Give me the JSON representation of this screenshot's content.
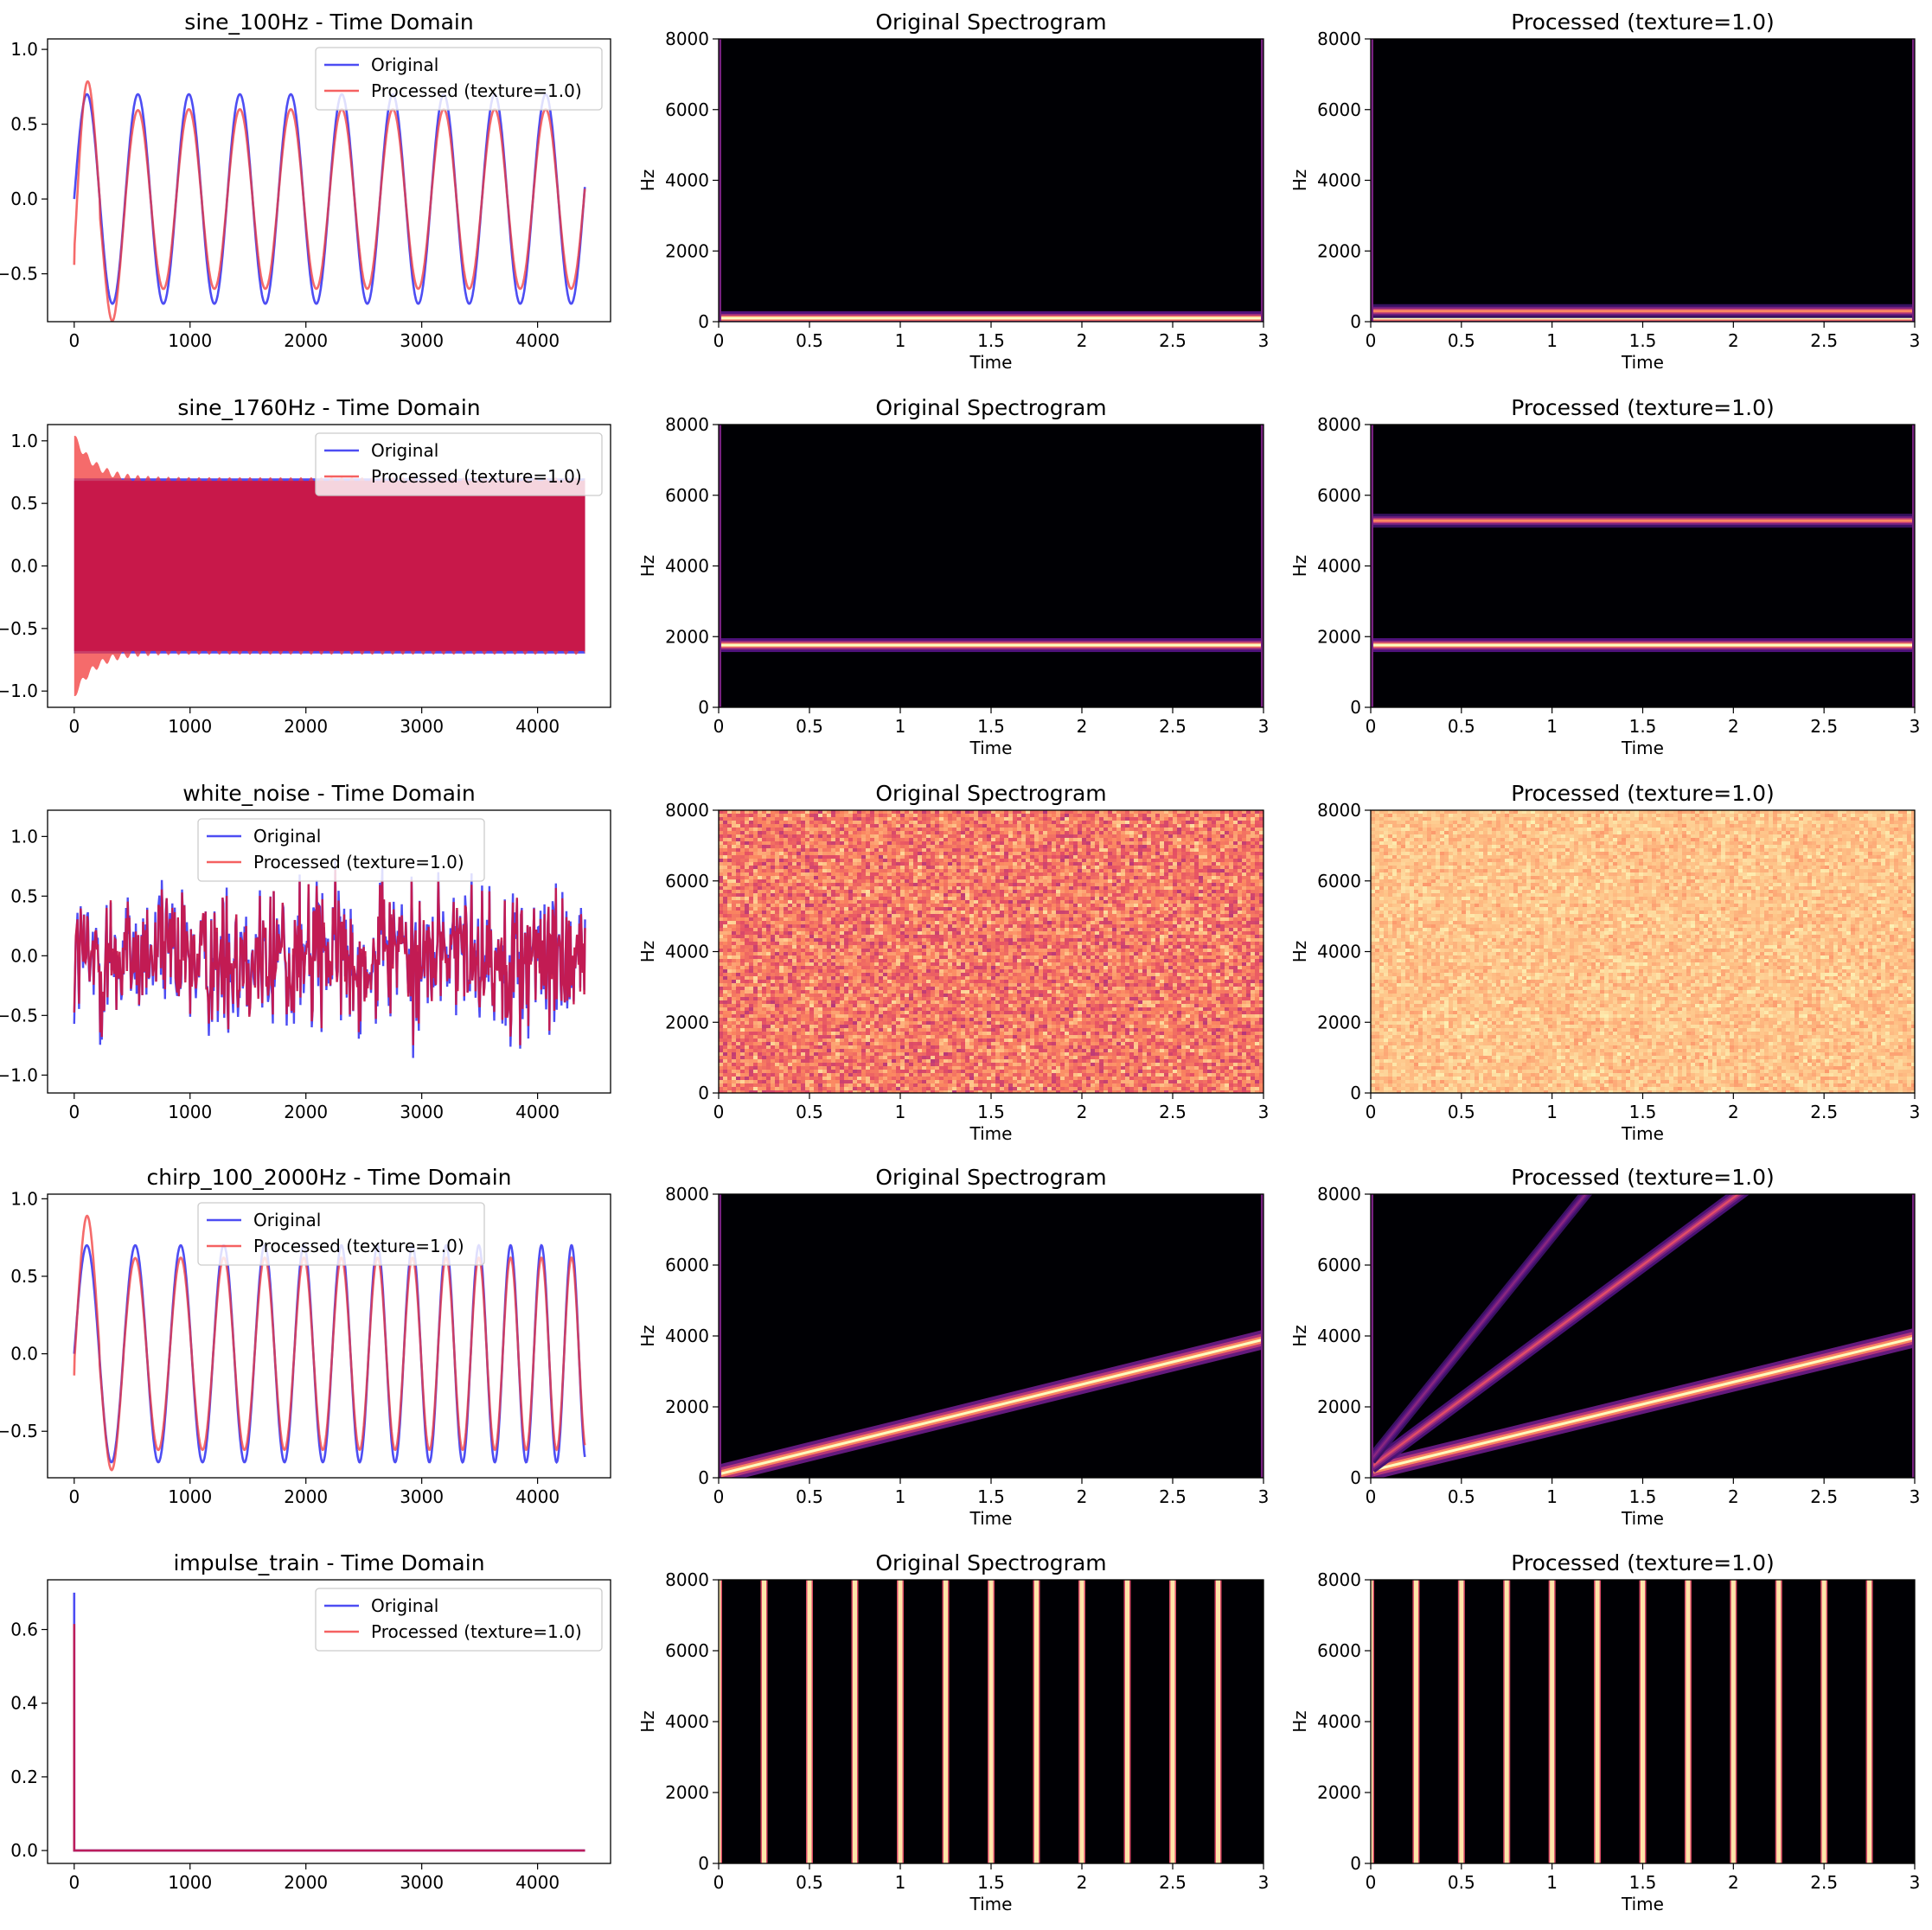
{
  "figure": {
    "time_col_title_suffix": " - Time Domain",
    "orig_spec_title": "Original Spectrogram",
    "proc_spec_title": "Processed (texture=1.0)",
    "spec_xlabel": "Time",
    "spec_ylabel": "Hz",
    "legend_original": "Original",
    "legend_processed": "Processed (texture=1.0)",
    "colors": {
      "original": "#3a3af2",
      "processed": "#f23a3a",
      "overlap": "#c8184a",
      "spec_background": "#000004"
    },
    "colormap": "magma"
  },
  "chart_data": [
    {
      "row": 0,
      "panel": "time",
      "type": "line",
      "title": "sine_100Hz - Time Domain",
      "signal_kind": "sine",
      "xlim": [
        -230,
        4630
      ],
      "ylim": [
        -0.82,
        1.07
      ],
      "xticks": [
        0,
        1000,
        2000,
        3000,
        4000
      ],
      "yticks": [
        -0.5,
        0.0,
        0.5,
        1.0
      ],
      "ytick_labels": [
        "−0.5",
        "0.0",
        "0.5",
        "1.0"
      ],
      "legend_position": "upper right",
      "series": [
        {
          "name": "Original",
          "amplitude": 0.7,
          "period": 440,
          "x_range": [
            0,
            4410
          ]
        },
        {
          "name": "Processed (texture=1.0)",
          "amplitude": 0.6,
          "start_value": -0.44,
          "first_peak": 0.97,
          "first_trough": -0.78,
          "period": 440,
          "x_range": [
            0,
            4410
          ]
        }
      ]
    },
    {
      "row": 0,
      "panel": "original_spectrogram",
      "type": "heatmap",
      "title": "Original Spectrogram",
      "xlabel": "Time",
      "ylabel": "Hz",
      "xlim": [
        0,
        3
      ],
      "ylim": [
        0,
        8000
      ],
      "xticks": [
        0,
        0.5,
        1,
        1.5,
        2,
        2.5,
        3
      ],
      "xtick_labels": [
        "0",
        "0.5",
        "1",
        "1.5",
        "2",
        "2.5",
        "3"
      ],
      "yticks": [
        0,
        2000,
        4000,
        6000,
        8000
      ],
      "tones_hz": [
        100
      ]
    },
    {
      "row": 0,
      "panel": "processed_spectrogram",
      "type": "heatmap",
      "title": "Processed (texture=1.0)",
      "xlabel": "Time",
      "ylabel": "Hz",
      "xlim": [
        0,
        3
      ],
      "ylim": [
        0,
        8000
      ],
      "xticks": [
        0,
        0.5,
        1,
        1.5,
        2,
        2.5,
        3
      ],
      "xtick_labels": [
        "0",
        "0.5",
        "1",
        "1.5",
        "2",
        "2.5",
        "3"
      ],
      "yticks": [
        0,
        2000,
        4000,
        6000,
        8000
      ],
      "tones_hz": [
        100,
        300
      ]
    },
    {
      "row": 1,
      "panel": "time",
      "type": "area",
      "title": "sine_1760Hz - Time Domain",
      "signal_kind": "dense_sine",
      "xlim": [
        -230,
        4630
      ],
      "ylim": [
        -1.13,
        1.13
      ],
      "xticks": [
        0,
        1000,
        2000,
        3000,
        4000
      ],
      "yticks": [
        -1.0,
        -0.5,
        0.0,
        0.5,
        1.0
      ],
      "ytick_labels": [
        "−1.0",
        "−0.5",
        "0.0",
        "0.5",
        "1.0"
      ],
      "legend_position": "upper right",
      "series": [
        {
          "name": "Original",
          "amplitude": 0.7,
          "x_range": [
            0,
            4410
          ]
        },
        {
          "name": "Processed (texture=1.0)",
          "amplitude_start": 1.04,
          "amplitude_end": 0.68,
          "x_range": [
            0,
            4410
          ]
        }
      ]
    },
    {
      "row": 1,
      "panel": "original_spectrogram",
      "type": "heatmap",
      "title": "Original Spectrogram",
      "xlabel": "Time",
      "ylabel": "Hz",
      "xlim": [
        0,
        3
      ],
      "ylim": [
        0,
        8000
      ],
      "xticks": [
        0,
        0.5,
        1,
        1.5,
        2,
        2.5,
        3
      ],
      "xtick_labels": [
        "0",
        "0.5",
        "1",
        "1.5",
        "2",
        "2.5",
        "3"
      ],
      "yticks": [
        0,
        2000,
        4000,
        6000,
        8000
      ],
      "tones_hz": [
        1760
      ]
    },
    {
      "row": 1,
      "panel": "processed_spectrogram",
      "type": "heatmap",
      "title": "Processed (texture=1.0)",
      "xlabel": "Time",
      "ylabel": "Hz",
      "xlim": [
        0,
        3
      ],
      "ylim": [
        0,
        8000
      ],
      "xticks": [
        0,
        0.5,
        1,
        1.5,
        2,
        2.5,
        3
      ],
      "xtick_labels": [
        "0",
        "0.5",
        "1",
        "1.5",
        "2",
        "2.5",
        "3"
      ],
      "yticks": [
        0,
        2000,
        4000,
        6000,
        8000
      ],
      "tones_hz": [
        1760,
        5280
      ]
    },
    {
      "row": 2,
      "panel": "time",
      "type": "line",
      "title": "white_noise - Time Domain",
      "signal_kind": "noise",
      "xlim": [
        -230,
        4630
      ],
      "ylim": [
        -1.15,
        1.22
      ],
      "xticks": [
        0,
        1000,
        2000,
        3000,
        4000
      ],
      "yticks": [
        -1.0,
        -0.5,
        0.0,
        0.5,
        1.0
      ],
      "ytick_labels": [
        "−1.0",
        "−0.5",
        "0.0",
        "0.5",
        "1.0"
      ],
      "legend_position": "upper center",
      "series": [
        {
          "name": "Original",
          "peak_range": [
            -1.05,
            1.13
          ],
          "x_range": [
            0,
            4410
          ]
        },
        {
          "name": "Processed (texture=1.0)",
          "peak_range": [
            -0.75,
            0.75
          ],
          "x_range": [
            0,
            4410
          ]
        }
      ]
    },
    {
      "row": 2,
      "panel": "original_spectrogram",
      "type": "heatmap",
      "title": "Original Spectrogram",
      "xlabel": "Time",
      "ylabel": "Hz",
      "xlim": [
        0,
        3
      ],
      "ylim": [
        0,
        8000
      ],
      "xticks": [
        0,
        0.5,
        1,
        1.5,
        2,
        2.5,
        3
      ],
      "xtick_labels": [
        "0",
        "0.5",
        "1",
        "1.5",
        "2",
        "2.5",
        "3"
      ],
      "yticks": [
        0,
        2000,
        4000,
        6000,
        8000
      ],
      "noise_level": 0.72
    },
    {
      "row": 2,
      "panel": "processed_spectrogram",
      "type": "heatmap",
      "title": "Processed (texture=1.0)",
      "xlabel": "Time",
      "ylabel": "Hz",
      "xlim": [
        0,
        3
      ],
      "ylim": [
        0,
        8000
      ],
      "xticks": [
        0,
        0.5,
        1,
        1.5,
        2,
        2.5,
        3
      ],
      "xtick_labels": [
        "0",
        "0.5",
        "1",
        "1.5",
        "2",
        "2.5",
        "3"
      ],
      "yticks": [
        0,
        2000,
        4000,
        6000,
        8000
      ],
      "noise_level": 0.88
    },
    {
      "row": 3,
      "panel": "time",
      "type": "line",
      "title": "chirp_100_2000Hz - Time Domain",
      "signal_kind": "chirp",
      "xlim": [
        -230,
        4630
      ],
      "ylim": [
        -0.8,
        1.03
      ],
      "xticks": [
        0,
        1000,
        2000,
        3000,
        4000
      ],
      "yticks": [
        -0.5,
        0.0,
        0.5,
        1.0
      ],
      "ytick_labels": [
        "−0.5",
        "0.0",
        "0.5",
        "1.0"
      ],
      "legend_position": "upper center",
      "series": [
        {
          "name": "Original",
          "amplitude": 0.7,
          "x_range": [
            0,
            4410
          ]
        },
        {
          "name": "Processed (texture=1.0)",
          "amplitude": 0.62,
          "start_value": -0.14,
          "first_peak": 0.95,
          "first_trough": -0.74,
          "x_range": [
            0,
            4410
          ]
        }
      ]
    },
    {
      "row": 3,
      "panel": "original_spectrogram",
      "type": "heatmap",
      "title": "Original Spectrogram",
      "xlabel": "Time",
      "ylabel": "Hz",
      "xlim": [
        0,
        3
      ],
      "ylim": [
        0,
        8000
      ],
      "xticks": [
        0,
        0.5,
        1,
        1.5,
        2,
        2.5,
        3
      ],
      "xtick_labels": [
        "0",
        "0.5",
        "1",
        "1.5",
        "2",
        "2.5",
        "3"
      ],
      "yticks": [
        0,
        2000,
        4000,
        6000,
        8000
      ],
      "chirp_lines": [
        {
          "f0": 100,
          "f1": 3900,
          "strength": 1.0
        }
      ]
    },
    {
      "row": 3,
      "panel": "processed_spectrogram",
      "type": "heatmap",
      "title": "Processed (texture=1.0)",
      "xlabel": "Time",
      "ylabel": "Hz",
      "xlim": [
        0,
        3
      ],
      "ylim": [
        0,
        8000
      ],
      "xticks": [
        0,
        0.5,
        1,
        1.5,
        2,
        2.5,
        3
      ],
      "xtick_labels": [
        "0",
        "0.5",
        "1",
        "1.5",
        "2",
        "2.5",
        "3"
      ],
      "yticks": [
        0,
        2000,
        4000,
        6000,
        8000
      ],
      "chirp_lines": [
        {
          "f0": 200,
          "f1": 3950,
          "strength": 1.0
        },
        {
          "f0": 300,
          "f1": 11700,
          "strength": 0.55
        },
        {
          "f0": 500,
          "f1": 19500,
          "strength": 0.3
        }
      ]
    },
    {
      "row": 4,
      "panel": "time",
      "type": "line",
      "title": "impulse_train - Time Domain",
      "signal_kind": "impulse",
      "xlim": [
        -230,
        4630
      ],
      "ylim": [
        -0.035,
        0.735
      ],
      "xticks": [
        0,
        1000,
        2000,
        3000,
        4000
      ],
      "yticks": [
        0.0,
        0.2,
        0.4,
        0.6
      ],
      "ytick_labels": [
        "0.0",
        "0.2",
        "0.4",
        "0.6"
      ],
      "legend_position": "upper right",
      "series": [
        {
          "name": "Original",
          "impulse_at": 0,
          "impulse_value": 0.7,
          "baseline": 0.0,
          "x_range": [
            0,
            4410
          ]
        },
        {
          "name": "Processed (texture=1.0)",
          "impulse_at": 0,
          "impulse_value": 0.615,
          "baseline": 0.0,
          "x_range": [
            0,
            4410
          ]
        }
      ]
    },
    {
      "row": 4,
      "panel": "original_spectrogram",
      "type": "heatmap",
      "title": "Original Spectrogram",
      "xlabel": "Time",
      "ylabel": "Hz",
      "xlim": [
        0,
        3
      ],
      "ylim": [
        0,
        8000
      ],
      "xticks": [
        0,
        0.5,
        1,
        1.5,
        2,
        2.5,
        3
      ],
      "xtick_labels": [
        "0",
        "0.5",
        "1",
        "1.5",
        "2",
        "2.5",
        "3"
      ],
      "yticks": [
        0,
        2000,
        4000,
        6000,
        8000
      ],
      "impulse_times": [
        0.0,
        0.25,
        0.5,
        0.75,
        1.0,
        1.25,
        1.5,
        1.75,
        2.0,
        2.25,
        2.5,
        2.75
      ]
    },
    {
      "row": 4,
      "panel": "processed_spectrogram",
      "type": "heatmap",
      "title": "Processed (texture=1.0)",
      "xlabel": "Time",
      "ylabel": "Hz",
      "xlim": [
        0,
        3
      ],
      "ylim": [
        0,
        8000
      ],
      "xticks": [
        0,
        0.5,
        1,
        1.5,
        2,
        2.5,
        3
      ],
      "xtick_labels": [
        "0",
        "0.5",
        "1",
        "1.5",
        "2",
        "2.5",
        "3"
      ],
      "yticks": [
        0,
        2000,
        4000,
        6000,
        8000
      ],
      "impulse_times": [
        0.0,
        0.25,
        0.5,
        0.75,
        1.0,
        1.25,
        1.5,
        1.75,
        2.0,
        2.25,
        2.5,
        2.75
      ]
    }
  ]
}
